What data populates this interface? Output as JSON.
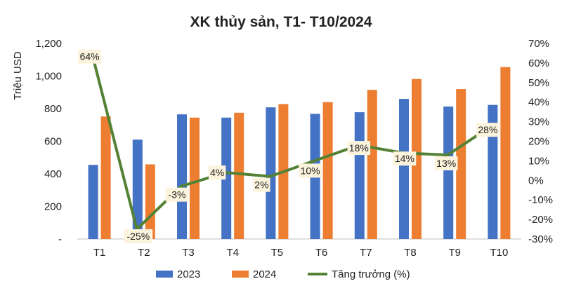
{
  "chart_data": {
    "type": "bar",
    "title": "XK thủy sản, T1- T10/2024",
    "ylabel": "Triệu USD",
    "categories": [
      "T1",
      "T2",
      "T3",
      "T4",
      "T5",
      "T6",
      "T7",
      "T8",
      "T9",
      "T10"
    ],
    "ylim": [
      0,
      1200
    ],
    "y_ticks": [
      0,
      200,
      400,
      600,
      800,
      1000,
      1200
    ],
    "y_tick_labels": [
      "-",
      "200",
      "400",
      "600",
      "800",
      "1,000",
      "1,200"
    ],
    "y2lim": [
      -30,
      70
    ],
    "y2_ticks": [
      -30,
      -20,
      -10,
      0,
      10,
      20,
      30,
      40,
      50,
      60,
      70
    ],
    "y2_tick_labels": [
      "-30%",
      "-20%",
      "-10%",
      "0%",
      "10%",
      "20%",
      "30%",
      "40%",
      "50%",
      "60%",
      "70%"
    ],
    "series": [
      {
        "name": "2023",
        "type": "bar",
        "axis": "left",
        "color": "#4472C4",
        "values": [
          455,
          610,
          765,
          745,
          808,
          768,
          778,
          860,
          813,
          823
        ]
      },
      {
        "name": "2024",
        "type": "bar",
        "axis": "left",
        "color": "#ED7D31",
        "values": [
          752,
          458,
          745,
          775,
          828,
          840,
          915,
          982,
          920,
          1055
        ]
      },
      {
        "name": "Tăng trưởng (%)",
        "type": "line",
        "axis": "right",
        "color": "#548235",
        "values": [
          64,
          -25,
          -3,
          4,
          2,
          10,
          18,
          14,
          13,
          28
        ],
        "labels": [
          "64%",
          "-25%",
          "-3%",
          "4%",
          "2%",
          "10%",
          "18%",
          "14%",
          "13%",
          "28%"
        ]
      }
    ],
    "legend": {
      "position": "bottom",
      "entries": [
        "2023",
        "2024",
        "Tăng trưởng (%)"
      ]
    },
    "grid": false
  }
}
